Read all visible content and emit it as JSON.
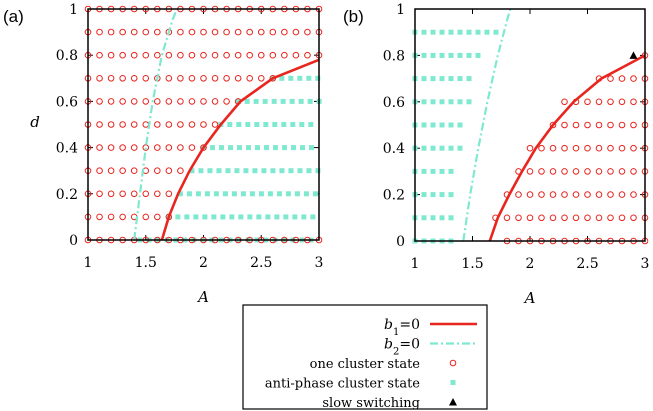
{
  "chart_data": [
    {
      "type": "scatter",
      "panel_label": "(a)",
      "xlabel": "A",
      "ylabel": "d",
      "xlim": [
        1,
        3
      ],
      "ylim": [
        0,
        1
      ],
      "xticks": [
        "1",
        "1.5",
        "2",
        "2.5",
        "3"
      ],
      "yticks": [
        "0",
        "0.2",
        "0.4",
        "0.6",
        "0.8",
        "1"
      ],
      "curves": {
        "b1": [
          [
            1.64,
            0
          ],
          [
            1.7,
            0.1
          ],
          [
            1.78,
            0.2
          ],
          [
            1.88,
            0.3
          ],
          [
            2.0,
            0.4
          ],
          [
            2.15,
            0.5
          ],
          [
            2.32,
            0.6
          ],
          [
            2.6,
            0.7
          ],
          [
            3.0,
            0.78
          ]
        ],
        "b2": [
          [
            1.4,
            0
          ],
          [
            1.45,
            0.2
          ],
          [
            1.5,
            0.4
          ],
          [
            1.56,
            0.6
          ],
          [
            1.64,
            0.8
          ],
          [
            1.73,
            0.95
          ],
          [
            1.77,
            1.0
          ]
        ]
      },
      "anti_phase_rows": [
        {
          "d": 0.0,
          "x_start": 1.45,
          "x_end": 3.0
        },
        {
          "d": 0.1,
          "x_start": 1.7,
          "x_end": 3.0
        },
        {
          "d": 0.2,
          "x_start": 1.8,
          "x_end": 3.0
        },
        {
          "d": 0.3,
          "x_start": 1.9,
          "x_end": 3.0
        },
        {
          "d": 0.4,
          "x_start": 2.0,
          "x_end": 3.0
        },
        {
          "d": 0.5,
          "x_start": 2.15,
          "x_end": 3.0
        },
        {
          "d": 0.6,
          "x_start": 2.3,
          "x_end": 3.0
        },
        {
          "d": 0.7,
          "x_start": 2.6,
          "x_end": 3.0
        }
      ],
      "one_cluster_step": 0.1
    },
    {
      "type": "scatter",
      "panel_label": "(b)",
      "xlabel": "A",
      "ylabel": "",
      "xlim": [
        1,
        3
      ],
      "ylim": [
        0,
        1
      ],
      "xticks": [
        "1",
        "1.5",
        "2",
        "2.5",
        "3"
      ],
      "yticks": [
        "0",
        "0.2",
        "0.4",
        "0.6",
        "0.8",
        "1"
      ],
      "curves": {
        "b1": [
          [
            1.65,
            0
          ],
          [
            1.72,
            0.1
          ],
          [
            1.82,
            0.2
          ],
          [
            1.93,
            0.3
          ],
          [
            2.05,
            0.4
          ],
          [
            2.2,
            0.5
          ],
          [
            2.38,
            0.6
          ],
          [
            2.62,
            0.7
          ],
          [
            3.0,
            0.8
          ]
        ],
        "b2": [
          [
            1.42,
            0
          ],
          [
            1.48,
            0.2
          ],
          [
            1.55,
            0.4
          ],
          [
            1.63,
            0.6
          ],
          [
            1.72,
            0.8
          ],
          [
            1.8,
            0.95
          ],
          [
            1.83,
            1.0
          ]
        ]
      },
      "anti_phase_rows": [
        {
          "d": 0.0,
          "x_start": 1.0,
          "x_end": 1.35
        },
        {
          "d": 0.1,
          "x_start": 1.0,
          "x_end": 1.35
        },
        {
          "d": 0.2,
          "x_start": 1.0,
          "x_end": 1.35
        },
        {
          "d": 0.3,
          "x_start": 1.0,
          "x_end": 1.35
        },
        {
          "d": 0.4,
          "x_start": 1.0,
          "x_end": 1.4
        },
        {
          "d": 0.5,
          "x_start": 1.0,
          "x_end": 1.45
        },
        {
          "d": 0.6,
          "x_start": 1.0,
          "x_end": 1.5
        },
        {
          "d": 0.7,
          "x_start": 1.0,
          "x_end": 1.5
        },
        {
          "d": 0.8,
          "x_start": 1.0,
          "x_end": 1.55
        },
        {
          "d": 0.9,
          "x_start": 1.0,
          "x_end": 1.7
        }
      ],
      "one_cluster_rows": [
        {
          "d": 0.0,
          "x_start": 1.8,
          "x_end": 3.0
        },
        {
          "d": 0.1,
          "x_start": 1.7,
          "x_end": 3.0
        },
        {
          "d": 0.2,
          "x_start": 1.8,
          "x_end": 3.0
        },
        {
          "d": 0.3,
          "x_start": 1.9,
          "x_end": 3.0
        },
        {
          "d": 0.4,
          "x_start": 2.0,
          "x_end": 3.0
        },
        {
          "d": 0.5,
          "x_start": 2.2,
          "x_end": 3.0
        },
        {
          "d": 0.6,
          "x_start": 2.3,
          "x_end": 3.0
        },
        {
          "d": 0.7,
          "x_start": 2.6,
          "x_end": 3.0
        },
        {
          "d": 0.8,
          "x_start": 3.0,
          "x_end": 3.0
        }
      ],
      "slow_switching": [
        [
          2.9,
          0.8
        ]
      ]
    }
  ],
  "legend": {
    "entries": [
      {
        "label_main": "b",
        "label_sub": "1",
        "label_rest": "=0",
        "kind": "b1"
      },
      {
        "label_main": "b",
        "label_sub": "2",
        "label_rest": "=0",
        "kind": "b2"
      },
      {
        "label_main": "one cluster state",
        "label_sub": "",
        "label_rest": "",
        "kind": "one"
      },
      {
        "label_main": "anti-phase cluster state",
        "label_sub": "",
        "label_rest": "",
        "kind": "anti"
      },
      {
        "label_main": "slow switching",
        "label_sub": "",
        "label_rest": "",
        "kind": "slow"
      }
    ]
  },
  "colors": {
    "b1": "#e8251f",
    "b2": "#7fe8d0",
    "one_cluster": "#e8251f",
    "anti_phase": "#7fe8d0",
    "slow": "#000000"
  }
}
